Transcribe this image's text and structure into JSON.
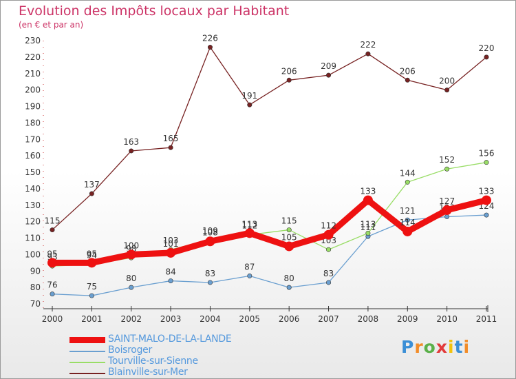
{
  "title": "Evolution des Impôts locaux par Habitant",
  "subtitle": "(en € et par an)",
  "brand": {
    "letters": [
      "P",
      "r",
      "o",
      "x",
      "i",
      "t",
      "i"
    ],
    "colors": [
      "#3b8fd6",
      "#f28c28",
      "#5bb04a",
      "#e23a3a",
      "#f2c20c",
      "#3b8fd6",
      "#f28c28"
    ]
  },
  "chart_data": {
    "type": "line",
    "title": "Evolution des Impôts locaux par Habitant",
    "subtitle": "(en € et par an)",
    "xlabel": "",
    "ylabel": "",
    "categories": [
      "2000",
      "2001",
      "2002",
      "2003",
      "2004",
      "2005",
      "2006",
      "2007",
      "2008",
      "2009",
      "2010",
      "2011"
    ],
    "ylim": [
      70,
      230
    ],
    "ytick_step": 10,
    "grid": false,
    "legend_position": "bottom-left",
    "series": [
      {
        "name": "SAINT-MALO-DE-LA-LANDE",
        "color": "#ee1111",
        "emphasis": true,
        "values": [
          95,
          95,
          100,
          101,
          108,
          113,
          105,
          112,
          133,
          114,
          127,
          133
        ]
      },
      {
        "name": "Boisroger",
        "color": "#6a9fd0",
        "emphasis": false,
        "values": [
          76,
          75,
          80,
          84,
          83,
          87,
          80,
          83,
          111,
          121,
          123,
          124
        ]
      },
      {
        "name": "Tourville-sur-Sienne",
        "color": "#99dd66",
        "emphasis": false,
        "values": [
          93,
          94,
          98,
          103,
          109,
          112,
          115,
          103,
          113,
          144,
          152,
          156
        ]
      },
      {
        "name": "Blainville-sur-Mer",
        "color": "#772222",
        "emphasis": false,
        "values": [
          115,
          137,
          163,
          165,
          226,
          191,
          206,
          209,
          222,
          206,
          200,
          220
        ]
      }
    ]
  }
}
